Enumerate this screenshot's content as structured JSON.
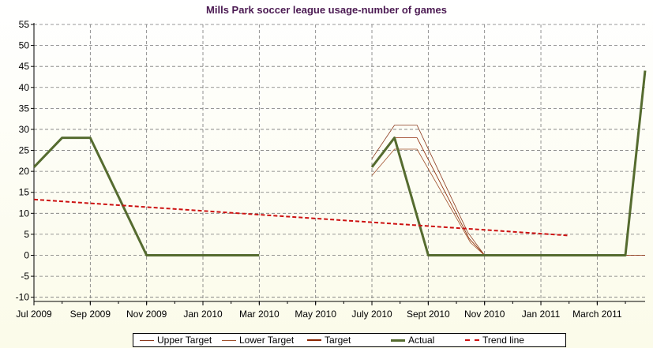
{
  "chart_data": {
    "type": "line",
    "title": "Mills Park soccer league usage-number of games",
    "xlabel": "",
    "ylabel": "",
    "ylim": [
      -11,
      55
    ],
    "yticks": [
      -10,
      -5,
      0,
      5,
      10,
      15,
      20,
      25,
      30,
      35,
      40,
      45,
      50,
      55
    ],
    "xlim": [
      0,
      21.7
    ],
    "x_ticks": [
      {
        "x": 0,
        "label": "Jul 2009"
      },
      {
        "x": 2,
        "label": "Sep 2009"
      },
      {
        "x": 4,
        "label": "Nov 2009"
      },
      {
        "x": 6,
        "label": "Jan 2010"
      },
      {
        "x": 8,
        "label": "Mar 2010"
      },
      {
        "x": 10,
        "label": "May 2010"
      },
      {
        "x": 12,
        "label": "July 2010"
      },
      {
        "x": 14,
        "label": "Sept 2010"
      },
      {
        "x": 16,
        "label": "Nov 2010"
      },
      {
        "x": 18,
        "label": "Jan 2011"
      },
      {
        "x": 20,
        "label": "March 2011"
      }
    ],
    "grid": true,
    "legend_position": "bottom",
    "series": [
      {
        "name": "Upper Target",
        "color": "#8b3a1e",
        "width": 0.8,
        "dash": "",
        "segments": [
          [
            [
              12,
              23
            ],
            [
              12.8,
              31
            ],
            [
              13.6,
              31
            ],
            [
              15.4,
              5.5
            ],
            [
              16,
              0
            ]
          ]
        ]
      },
      {
        "name": "Lower Target",
        "color": "#a0522d",
        "width": 0.8,
        "dash": "",
        "segments": [
          [
            [
              12,
              19
            ],
            [
              12.8,
              25.3
            ],
            [
              13.6,
              25.3
            ],
            [
              15.5,
              3
            ],
            [
              16,
              0
            ]
          ]
        ]
      },
      {
        "name": "Target",
        "color": "#8b2500",
        "width": 0.8,
        "dash": "",
        "segments": [
          [
            [
              12,
              21
            ],
            [
              12.8,
              28
            ],
            [
              13.6,
              28
            ],
            [
              15.45,
              4
            ],
            [
              16,
              0
            ],
            [
              21.7,
              0
            ]
          ]
        ]
      },
      {
        "name": "Actual",
        "color": "#556b2f",
        "width": 3,
        "dash": "",
        "segments": [
          [
            [
              0,
              21
            ],
            [
              1,
              28
            ],
            [
              2,
              28
            ],
            [
              4,
              0
            ],
            [
              8,
              0
            ]
          ],
          [
            [
              12,
              21
            ],
            [
              12.8,
              28
            ],
            [
              14,
              0
            ],
            [
              21,
              0
            ],
            [
              21.7,
              44
            ]
          ]
        ]
      },
      {
        "name": "Trend line",
        "color": "#cc1111",
        "width": 2,
        "dash": "5,3",
        "segments": [
          [
            [
              0,
              13.3
            ],
            [
              19,
              4.7
            ]
          ]
        ]
      }
    ]
  }
}
